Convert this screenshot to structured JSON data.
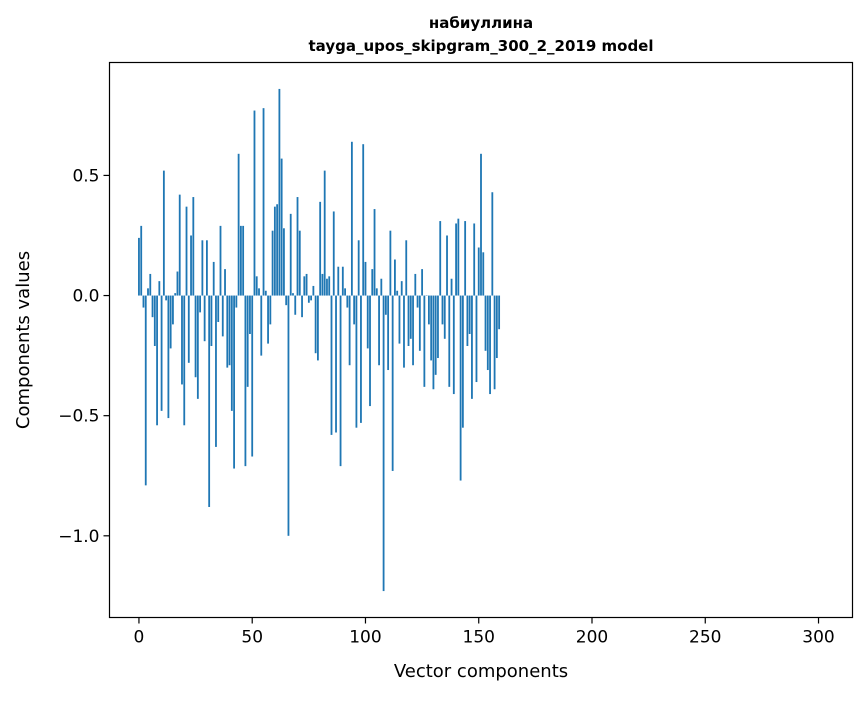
{
  "chart_data": {
    "type": "bar",
    "title_lines": [
      "набиуллина",
      "tayga_upos_skipgram_300_2_2019 model"
    ],
    "xlabel": "Vector components",
    "ylabel": "Components values",
    "xlim": [
      -13,
      315
    ],
    "ylim": [
      -1.34,
      0.97
    ],
    "xticks": [
      0,
      50,
      100,
      150,
      200,
      250,
      300
    ],
    "xtick_labels": [
      "0",
      "50",
      "100",
      "150",
      "200",
      "250",
      "300"
    ],
    "yticks": [
      0.5,
      0.0,
      -0.5,
      -1.0
    ],
    "ytick_labels": [
      "0.5",
      "0.0",
      "−0.5",
      "−1.0"
    ],
    "bar_color": "#1f77b4",
    "values": [
      0.24,
      0.29,
      -0.05,
      -0.79,
      0.03,
      0.09,
      -0.09,
      -0.21,
      -0.54,
      0.06,
      -0.48,
      0.52,
      -0.02,
      -0.51,
      -0.22,
      -0.12,
      0.01,
      0.1,
      0.42,
      -0.37,
      -0.54,
      0.37,
      -0.28,
      0.25,
      0.41,
      -0.34,
      -0.43,
      -0.07,
      0.23,
      -0.19,
      0.23,
      -0.88,
      -0.21,
      0.14,
      -0.63,
      -0.11,
      0.29,
      -0.17,
      0.11,
      -0.3,
      -0.29,
      -0.48,
      -0.72,
      -0.05,
      0.59,
      0.29,
      0.29,
      -0.71,
      -0.38,
      -0.16,
      -0.67,
      0.77,
      0.08,
      0.03,
      -0.25,
      0.78,
      0.02,
      -0.2,
      -0.12,
      0.27,
      0.37,
      0.38,
      0.86,
      0.57,
      0.28,
      -0.04,
      -1.0,
      0.34,
      0.01,
      -0.08,
      0.41,
      0.27,
      -0.09,
      0.08,
      0.09,
      -0.03,
      -0.02,
      0.04,
      -0.24,
      -0.27,
      0.39,
      0.09,
      0.52,
      0.07,
      0.08,
      -0.58,
      0.35,
      -0.57,
      0.12,
      -0.71,
      0.12,
      0.03,
      -0.05,
      -0.29,
      0.64,
      -0.12,
      -0.55,
      0.23,
      -0.53,
      0.63,
      0.14,
      -0.22,
      -0.46,
      0.11,
      0.36,
      0.03,
      -0.29,
      0.07,
      -1.23,
      -0.08,
      -0.31,
      0.27,
      -0.73,
      0.15,
      0.02,
      -0.2,
      0.06,
      -0.3,
      0.23,
      -0.21,
      -0.18,
      -0.29,
      0.09,
      -0.05,
      -0.23,
      0.11,
      -0.38,
      0.0,
      -0.12,
      -0.27,
      -0.39,
      -0.33,
      -0.26,
      0.31,
      -0.12,
      -0.18,
      0.25,
      -0.38,
      0.07,
      -0.41,
      0.3,
      0.32,
      -0.77,
      -0.55,
      0.31,
      -0.21,
      -0.16,
      -0.43,
      0.3,
      -0.36,
      0.2,
      0.59,
      0.18,
      -0.23,
      -0.31,
      -0.41,
      0.43,
      -0.39,
      -0.26,
      -0.14
    ]
  }
}
